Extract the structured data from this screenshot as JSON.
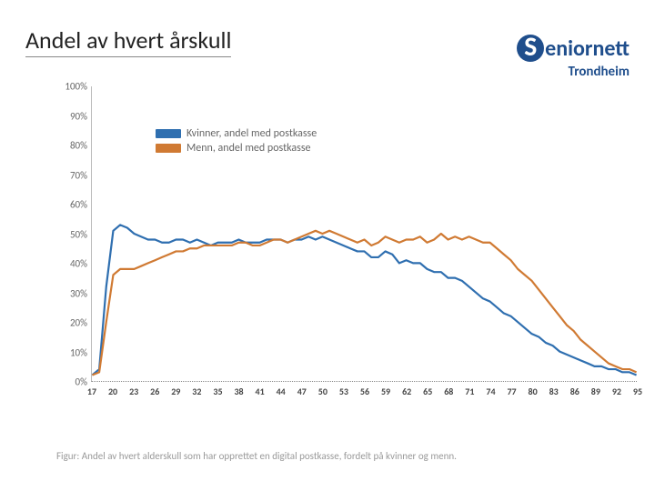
{
  "title": "Andel av hvert årskull",
  "logo": {
    "text": "eniornett",
    "prefix": "S",
    "subtitle": "Trondheim",
    "color": "#1f4e8c"
  },
  "caption": "Figur: Andel av hvert alderskull som har opprettet en digital postkasse, fordelt på kvinner og menn.",
  "chart": {
    "type": "line",
    "ylim": [
      0,
      100
    ],
    "yticks": [
      0,
      10,
      20,
      30,
      40,
      50,
      60,
      70,
      80,
      90,
      100
    ],
    "ytick_suffix": "%",
    "xticks": [
      17,
      20,
      23,
      26,
      29,
      32,
      35,
      38,
      41,
      44,
      47,
      50,
      53,
      56,
      59,
      62,
      65,
      68,
      71,
      74,
      77,
      80,
      83,
      86,
      89,
      92,
      95
    ],
    "xrange": [
      17,
      95
    ],
    "grid_color": "#e7e7e7",
    "axis_color": "#bbbbbb",
    "axis_fontsize": 11,
    "line_width": 2.2,
    "background_color": "#ffffff",
    "legend": {
      "items": [
        {
          "label": "Kvinner, andel med postkasse",
          "color": "#2f6fb0"
        },
        {
          "label": "Menn, andel med postkasse",
          "color": "#d07a33"
        }
      ]
    },
    "series": [
      {
        "name": "kvinner",
        "color": "#2f6fb0",
        "x": [
          17,
          18,
          19,
          20,
          21,
          22,
          23,
          24,
          25,
          26,
          27,
          28,
          29,
          30,
          31,
          32,
          33,
          34,
          35,
          36,
          37,
          38,
          39,
          40,
          41,
          42,
          43,
          44,
          45,
          46,
          47,
          48,
          49,
          50,
          51,
          52,
          53,
          54,
          55,
          56,
          57,
          58,
          59,
          60,
          61,
          62,
          63,
          64,
          65,
          66,
          67,
          68,
          69,
          70,
          71,
          72,
          73,
          74,
          75,
          76,
          77,
          78,
          79,
          80,
          81,
          82,
          83,
          84,
          85,
          86,
          87,
          88,
          89,
          90,
          91,
          92,
          93,
          94,
          95
        ],
        "y": [
          2,
          4,
          32,
          51,
          53,
          52,
          50,
          49,
          48,
          48,
          47,
          47,
          48,
          48,
          47,
          48,
          47,
          46,
          47,
          47,
          47,
          48,
          47,
          47,
          47,
          48,
          48,
          48,
          47,
          48,
          48,
          49,
          48,
          49,
          48,
          47,
          46,
          45,
          44,
          44,
          42,
          42,
          44,
          43,
          40,
          41,
          40,
          40,
          38,
          37,
          37,
          35,
          35,
          34,
          32,
          30,
          28,
          27,
          25,
          23,
          22,
          20,
          18,
          16,
          15,
          13,
          12,
          10,
          9,
          8,
          7,
          6,
          5,
          5,
          4,
          4,
          3,
          3,
          2
        ]
      },
      {
        "name": "menn",
        "color": "#d07a33",
        "x": [
          17,
          18,
          19,
          20,
          21,
          22,
          23,
          24,
          25,
          26,
          27,
          28,
          29,
          30,
          31,
          32,
          33,
          34,
          35,
          36,
          37,
          38,
          39,
          40,
          41,
          42,
          43,
          44,
          45,
          46,
          47,
          48,
          49,
          50,
          51,
          52,
          53,
          54,
          55,
          56,
          57,
          58,
          59,
          60,
          61,
          62,
          63,
          64,
          65,
          66,
          67,
          68,
          69,
          70,
          71,
          72,
          73,
          74,
          75,
          76,
          77,
          78,
          79,
          80,
          81,
          82,
          83,
          84,
          85,
          86,
          87,
          88,
          89,
          90,
          91,
          92,
          93,
          94,
          95
        ],
        "y": [
          2,
          3,
          20,
          36,
          38,
          38,
          38,
          39,
          40,
          41,
          42,
          43,
          44,
          44,
          45,
          45,
          46,
          46,
          46,
          46,
          46,
          47,
          47,
          46,
          46,
          47,
          48,
          48,
          47,
          48,
          49,
          50,
          51,
          50,
          51,
          50,
          49,
          48,
          47,
          48,
          46,
          47,
          49,
          48,
          47,
          48,
          48,
          49,
          47,
          48,
          50,
          48,
          49,
          48,
          49,
          48,
          47,
          47,
          45,
          43,
          41,
          38,
          36,
          34,
          31,
          28,
          25,
          22,
          19,
          17,
          14,
          12,
          10,
          8,
          6,
          5,
          4,
          4,
          3
        ]
      }
    ]
  }
}
